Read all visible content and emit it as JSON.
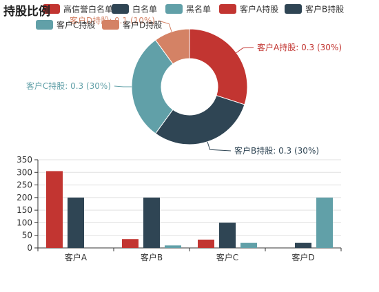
{
  "chart_data": [
    {
      "type": "pie",
      "title": "持股比例",
      "slices": [
        {
          "name": "客户A持股",
          "value": 0.3,
          "pct": 30,
          "label": "客户A持股: 0.3 (30%)",
          "color": "#c23531"
        },
        {
          "name": "客户B持股",
          "value": 0.3,
          "pct": 30,
          "label": "客户B持股: 0.3 (30%)",
          "color": "#2f4554"
        },
        {
          "name": "客户C持股",
          "value": 0.3,
          "pct": 30,
          "label": "客户C持股: 0.3 (30%)",
          "color": "#61a0a8"
        },
        {
          "name": "客户D持股",
          "value": 0.1,
          "pct": 10,
          "label": "客户D持股: 0.1 (10%)",
          "color": "#d48265"
        }
      ]
    },
    {
      "type": "bar",
      "categories": [
        "客户A",
        "客户B",
        "客户C",
        "客户D"
      ],
      "series": [
        {
          "name": "高信誉白名单",
          "color": "#c23531",
          "values": [
            305,
            35,
            33,
            0
          ]
        },
        {
          "name": "白名单",
          "color": "#2f4554",
          "values": [
            200,
            200,
            100,
            20
          ]
        },
        {
          "name": "黑名单",
          "color": "#61a0a8",
          "values": [
            0,
            10,
            20,
            200
          ]
        }
      ],
      "ylim": [
        0,
        350
      ],
      "yticks": [
        0,
        50,
        100,
        150,
        200,
        250,
        300,
        350
      ],
      "grid": true
    }
  ],
  "legend": [
    {
      "name": "高信誉白名单",
      "color": "#c23531"
    },
    {
      "name": "白名单",
      "color": "#2f4554"
    },
    {
      "name": "黑名单",
      "color": "#61a0a8"
    },
    {
      "name": "客户A持股",
      "color": "#c23531"
    },
    {
      "name": "客户B持股",
      "color": "#2f4554"
    },
    {
      "name": "客户C持股",
      "color": "#61a0a8"
    },
    {
      "name": "客户D持股",
      "color": "#d48265"
    }
  ]
}
